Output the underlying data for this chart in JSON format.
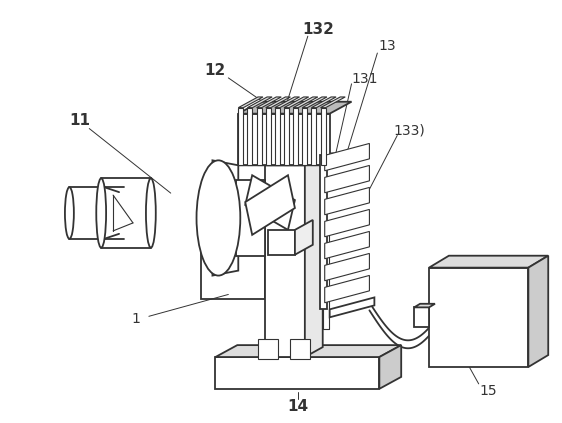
{
  "background_color": "#ffffff",
  "line_color": "#333333",
  "lw": 1.3,
  "tlw": 0.8,
  "label_fontsize": 10,
  "label_fontsize_bold": 11
}
